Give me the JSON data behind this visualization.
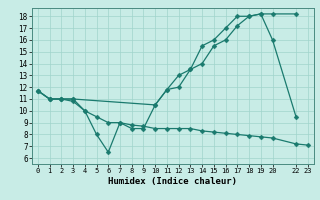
{
  "xlabel": "Humidex (Indice chaleur)",
  "bg_color": "#c8ece6",
  "grid_color": "#a0d4cc",
  "line_color": "#1a7a6e",
  "xlim": [
    -0.5,
    23.5
  ],
  "ylim": [
    5.5,
    18.7
  ],
  "yticks": [
    6,
    7,
    8,
    9,
    10,
    11,
    12,
    13,
    14,
    15,
    16,
    17,
    18
  ],
  "xtick_positions": [
    0,
    1,
    2,
    3,
    4,
    5,
    6,
    7,
    8,
    9,
    10,
    11,
    12,
    13,
    14,
    15,
    16,
    17,
    18,
    19,
    20,
    22,
    23
  ],
  "xtick_labels": [
    "0",
    "1",
    "2",
    "3",
    "4",
    "5",
    "6",
    "7",
    "8",
    "9",
    "10",
    "11",
    "12",
    "13",
    "14",
    "15",
    "16",
    "17",
    "18",
    "19",
    "20",
    "22",
    "23"
  ],
  "line1_x": [
    0,
    1,
    2,
    3,
    4,
    5,
    6,
    7,
    8,
    9,
    10,
    11,
    12,
    13,
    14,
    15,
    16,
    17,
    18,
    19,
    20,
    22
  ],
  "line1_y": [
    11.7,
    11.0,
    11.0,
    11.0,
    10.0,
    8.0,
    6.5,
    9.0,
    8.5,
    8.5,
    10.5,
    11.8,
    13.0,
    13.5,
    15.5,
    16.0,
    17.0,
    18.0,
    18.0,
    18.2,
    16.0,
    9.5
  ],
  "line2_x": [
    0,
    1,
    2,
    3,
    10,
    11,
    12,
    13,
    14,
    15,
    16,
    17,
    18,
    19,
    20,
    22
  ],
  "line2_y": [
    11.7,
    11.0,
    11.0,
    11.0,
    10.5,
    11.8,
    12.0,
    13.5,
    14.0,
    15.5,
    16.0,
    17.2,
    18.0,
    18.2,
    18.2,
    18.2
  ],
  "line3_x": [
    0,
    1,
    2,
    3,
    4,
    5,
    6,
    7,
    8,
    9,
    10,
    11,
    12,
    13,
    14,
    15,
    16,
    17,
    18,
    19,
    20,
    22,
    23
  ],
  "line3_y": [
    11.7,
    11.0,
    11.0,
    10.8,
    10.0,
    9.5,
    9.0,
    9.0,
    8.8,
    8.7,
    8.5,
    8.5,
    8.5,
    8.5,
    8.3,
    8.2,
    8.1,
    8.0,
    7.9,
    7.8,
    7.7,
    7.2,
    7.1
  ]
}
